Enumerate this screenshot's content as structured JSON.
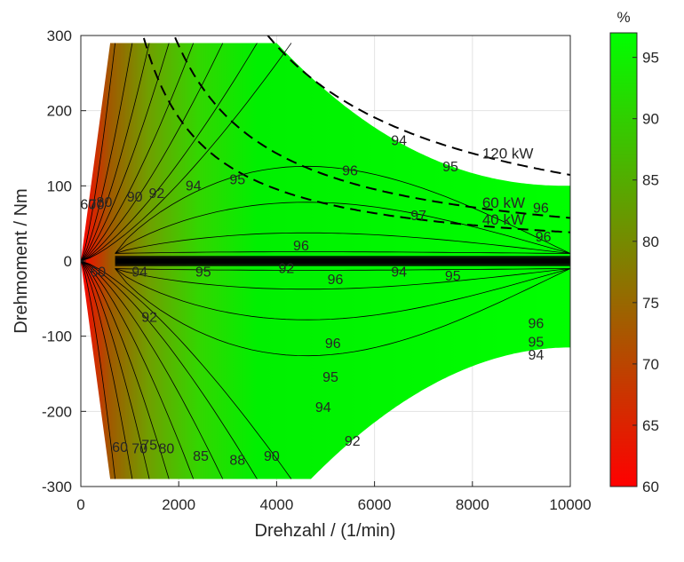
{
  "chart_data": {
    "type": "heatmap",
    "title": "",
    "xlabel": "Drehzahl / (1/min)",
    "ylabel": "Drehmoment / Nm",
    "xlim": [
      0,
      10000
    ],
    "ylim": [
      -300,
      300
    ],
    "xticks": [
      0,
      2000,
      4000,
      6000,
      8000,
      10000
    ],
    "yticks": [
      -300,
      -200,
      -100,
      0,
      100,
      200,
      300
    ],
    "xtick_labels": [
      "0",
      "2000",
      "4000",
      "6000",
      "8000",
      "10000"
    ],
    "ytick_labels": [
      "-300",
      "-200",
      "-100",
      "0",
      "100",
      "200",
      "300"
    ],
    "grid": true,
    "colorbar": {
      "unit": "%",
      "range": [
        60,
        97
      ],
      "ticks": [
        60,
        65,
        70,
        75,
        80,
        85,
        90,
        95
      ],
      "tick_labels": [
        "60",
        "65",
        "70",
        "75",
        "80",
        "85",
        "90",
        "95"
      ],
      "color_low": "#ff0000",
      "color_high": "#00ff00"
    },
    "operating_region": {
      "max_torque": 290,
      "corner_speed_motor": 4000,
      "corner_speed_generator": 4700,
      "max_speed": 10000,
      "torque_at_max_speed_motor": 100,
      "torque_at_max_speed_generator": -115
    },
    "efficiency_contour_levels": [
      60,
      65,
      70,
      75,
      80,
      85,
      88,
      90,
      92,
      94,
      95,
      96,
      97
    ],
    "efficiency_contour_labels": [
      {
        "text": "94",
        "x": 6500,
        "y": 160
      },
      {
        "text": "95",
        "x": 7550,
        "y": 125
      },
      {
        "text": "96",
        "x": 5500,
        "y": 120
      },
      {
        "text": "97",
        "x": 6900,
        "y": 60
      },
      {
        "text": "96",
        "x": 9400,
        "y": 70
      },
      {
        "text": "96",
        "x": 9450,
        "y": 32
      },
      {
        "text": "96",
        "x": 4500,
        "y": 20
      },
      {
        "text": "92",
        "x": 1550,
        "y": 90
      },
      {
        "text": "94",
        "x": 2300,
        "y": 100
      },
      {
        "text": "95",
        "x": 3200,
        "y": 108
      },
      {
        "text": "90",
        "x": 1100,
        "y": 85
      },
      {
        "text": "94",
        "x": 1200,
        "y": -15
      },
      {
        "text": "95",
        "x": 2500,
        "y": -15
      },
      {
        "text": "92",
        "x": 4200,
        "y": -10
      },
      {
        "text": "96",
        "x": 5200,
        "y": -25
      },
      {
        "text": "94",
        "x": 6500,
        "y": -15
      },
      {
        "text": "95",
        "x": 7600,
        "y": -20
      },
      {
        "text": "92",
        "x": 1400,
        "y": -75
      },
      {
        "text": "96",
        "x": 5150,
        "y": -110
      },
      {
        "text": "95",
        "x": 5100,
        "y": -155
      },
      {
        "text": "94",
        "x": 4950,
        "y": -195
      },
      {
        "text": "92",
        "x": 5550,
        "y": -240
      },
      {
        "text": "96",
        "x": 9300,
        "y": -83
      },
      {
        "text": "95",
        "x": 9300,
        "y": -108
      },
      {
        "text": "94",
        "x": 9300,
        "y": -125
      },
      {
        "text": "90",
        "x": 3900,
        "y": -260
      },
      {
        "text": "88",
        "x": 3200,
        "y": -265
      },
      {
        "text": "85",
        "x": 2450,
        "y": -260
      },
      {
        "text": "80",
        "x": 1750,
        "y": -250
      },
      {
        "text": "75",
        "x": 1400,
        "y": -245
      },
      {
        "text": "70",
        "x": 1200,
        "y": -250
      },
      {
        "text": "60",
        "x": 800,
        "y": -248
      },
      {
        "text": "60",
        "x": 150,
        "y": 75
      },
      {
        "text": "70",
        "x": 320,
        "y": 75
      },
      {
        "text": "80",
        "x": 480,
        "y": 78
      },
      {
        "text": "60",
        "x": 350,
        "y": -15
      }
    ],
    "power_lines": [
      {
        "label": "120 kW",
        "power_kW": 120
      },
      {
        "label": "60 kW",
        "power_kW": 60
      },
      {
        "label": "40 kW",
        "power_kW": 40
      }
    ]
  }
}
